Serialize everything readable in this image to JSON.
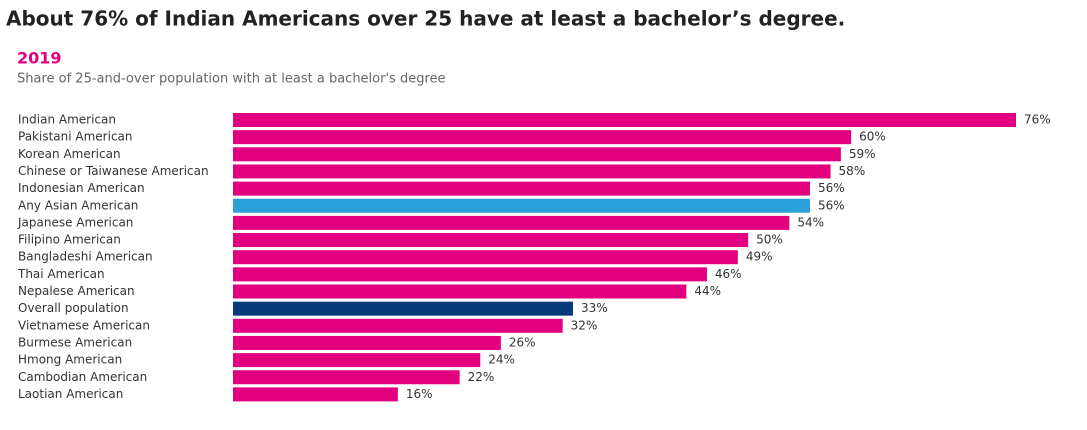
{
  "chart_data": {
    "type": "bar",
    "orientation": "horizontal",
    "title": "About 76% of Indian Americans over 25 have at least a bachelor’s degree.",
    "subtitle": "2019",
    "description": "Share of 25-and-over population with at least a bachelor's degree",
    "categories": [
      "Indian American",
      "Pakistani American",
      "Korean American",
      "Chinese or Taiwanese American",
      "Indonesian American",
      "Any Asian American",
      "Japanese American",
      "Filipino American",
      "Bangladeshi American",
      "Thai American",
      "Nepalese American",
      "Overall population",
      "Vietnamese American",
      "Burmese American",
      "Hmong American",
      "Cambodian American",
      "Laotian American"
    ],
    "values": [
      76,
      60,
      59,
      58,
      56,
      56,
      54,
      50,
      49,
      46,
      44,
      33,
      32,
      26,
      24,
      22,
      16
    ],
    "value_labels": [
      "76%",
      "60%",
      "59%",
      "58%",
      "56%",
      "56%",
      "54%",
      "50%",
      "49%",
      "46%",
      "44%",
      "33%",
      "32%",
      "26%",
      "24%",
      "22%",
      "16%"
    ],
    "colors": [
      "#e2007e",
      "#e2007e",
      "#e2007e",
      "#e2007e",
      "#e2007e",
      "#2a9fd8",
      "#e2007e",
      "#e2007e",
      "#e2007e",
      "#e2007e",
      "#e2007e",
      "#053a7a",
      "#e2007e",
      "#e2007e",
      "#e2007e",
      "#e2007e",
      "#e2007e"
    ]
  }
}
